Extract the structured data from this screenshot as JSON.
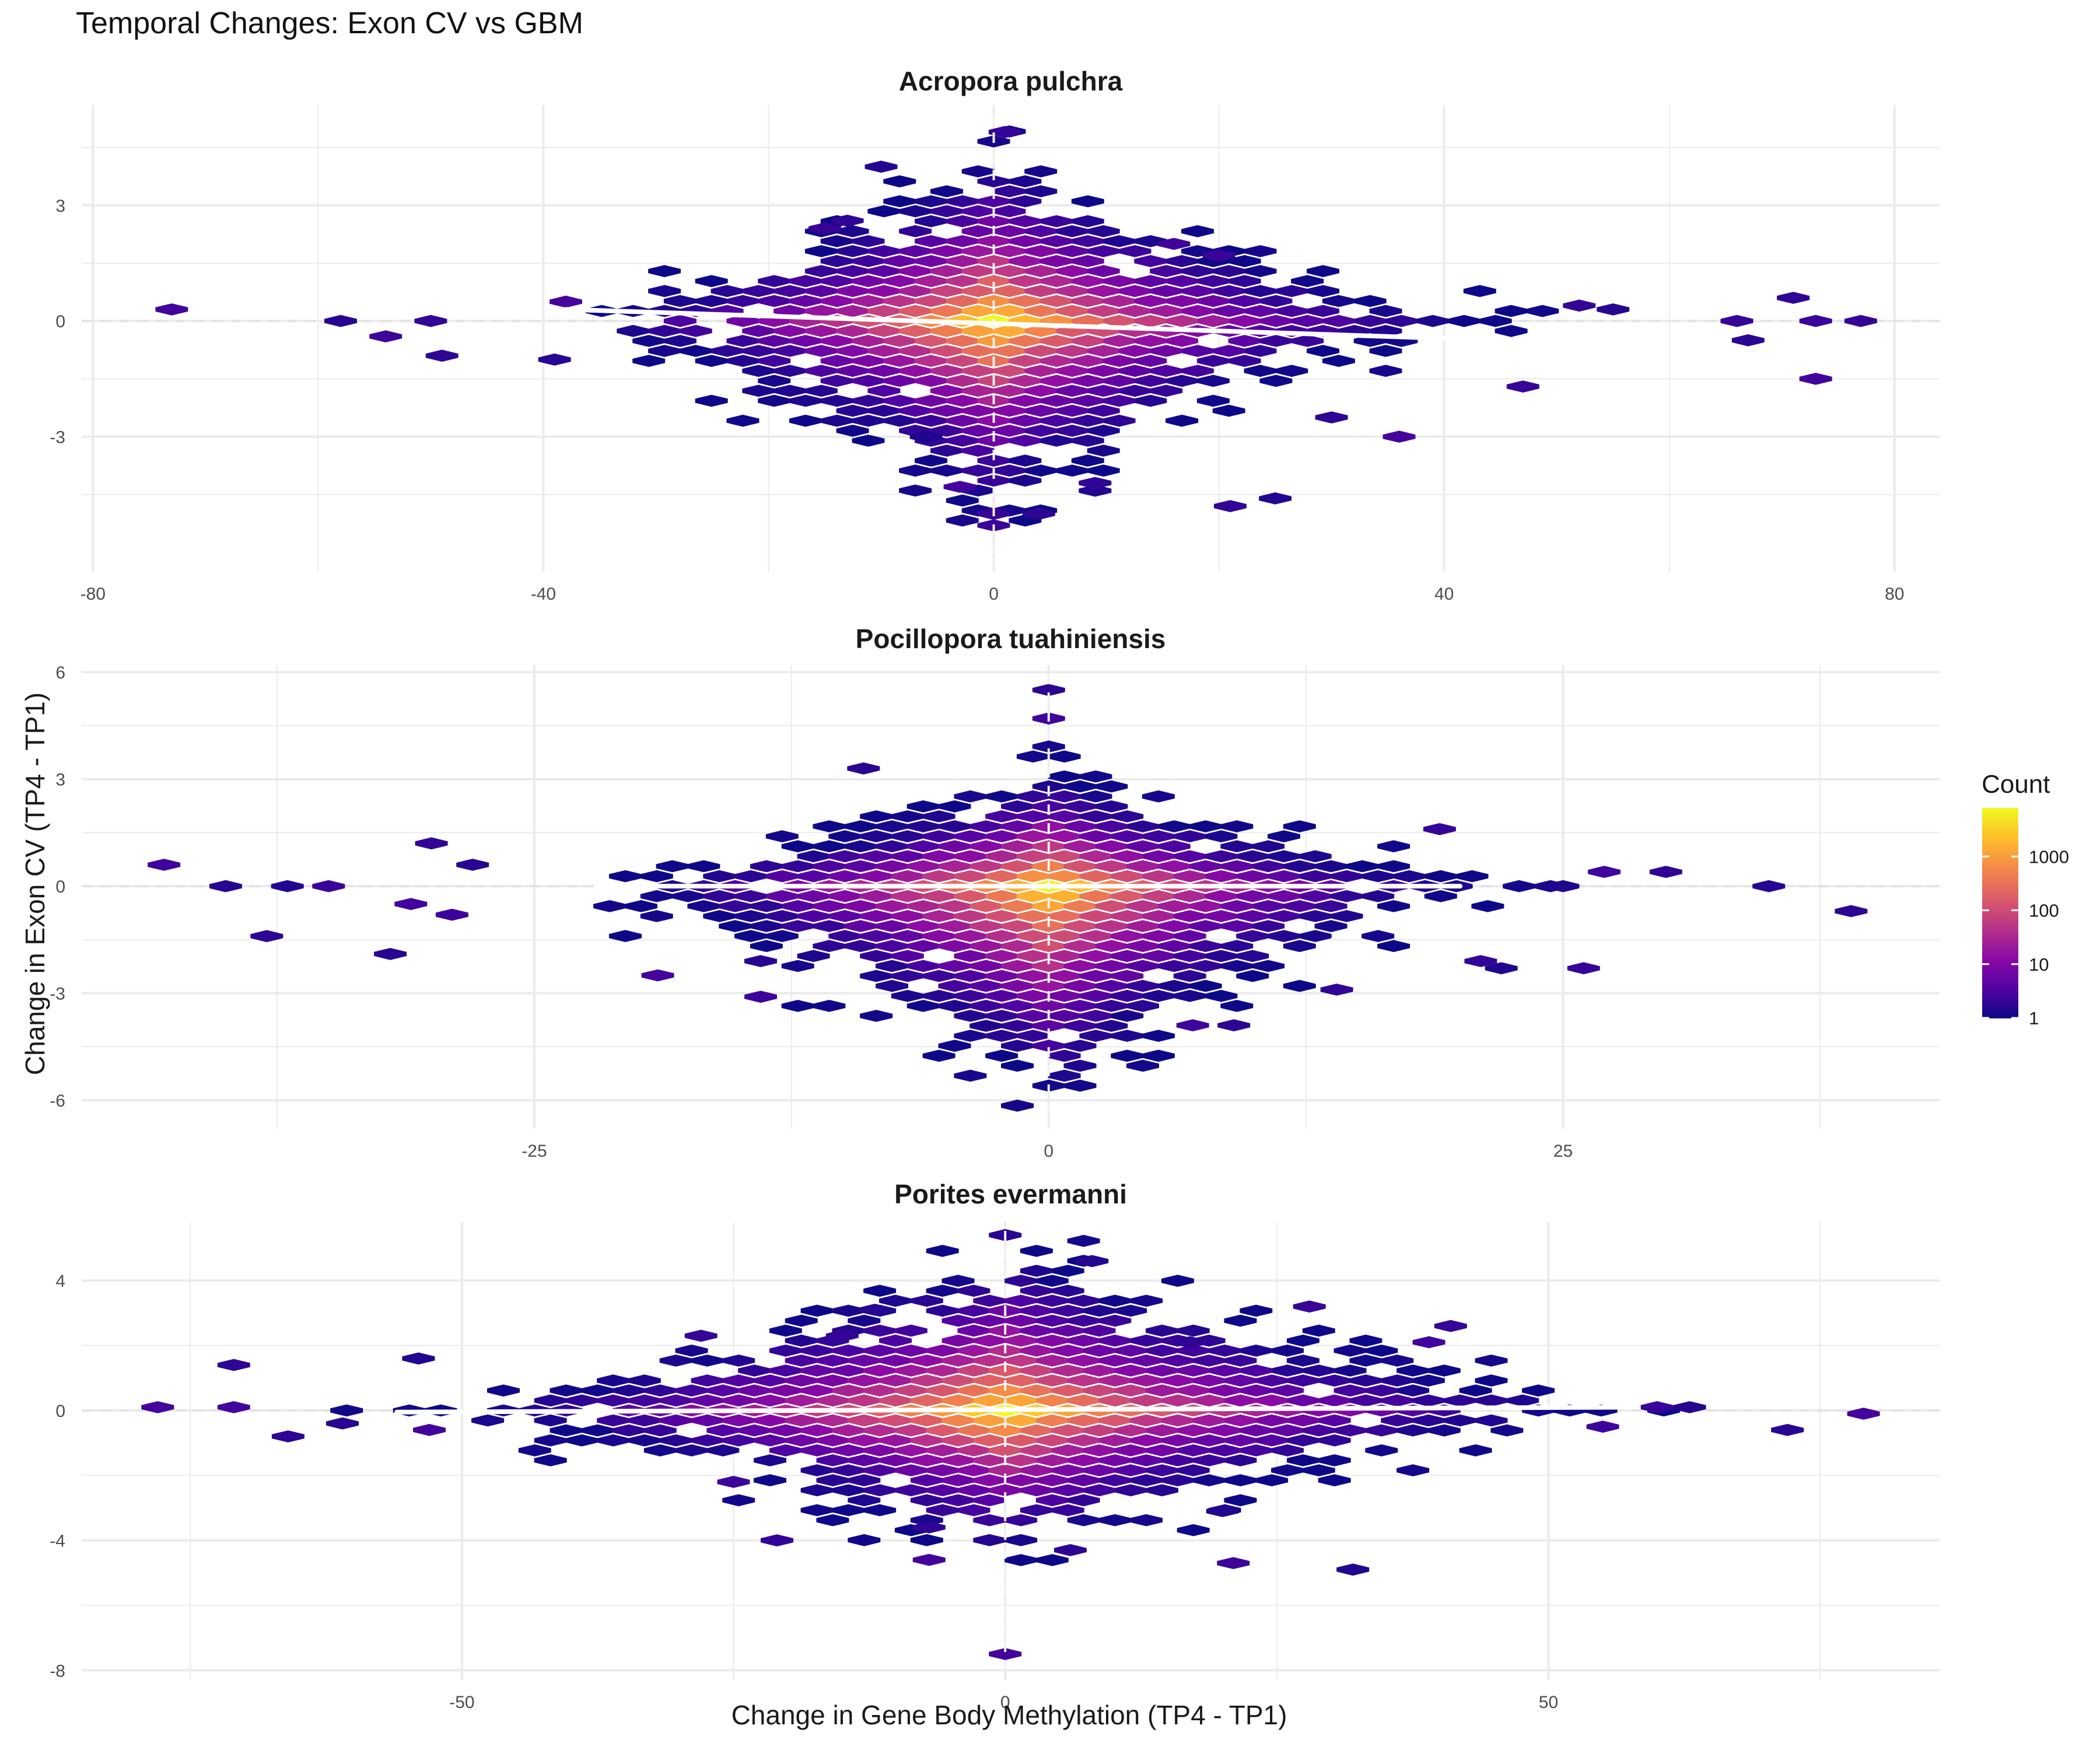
{
  "chart_data": {
    "type": "hexbin",
    "title": "Temporal Changes: Exon CV vs GBM",
    "xlabel": "Change in Gene Body Methylation (TP4 - TP1)",
    "ylabel": "Change in Exon CV (TP4 - TP1)",
    "legend": {
      "title": "Count",
      "scale": "log10",
      "range": [
        1,
        8000
      ],
      "breaks": [
        1,
        10,
        100,
        1000
      ],
      "break_labels": [
        "1",
        "10",
        "100",
        "1000"
      ],
      "colors": [
        "#0d0887",
        "#5302a3",
        "#8b0aa5",
        "#b83289",
        "#db5c68",
        "#f48849",
        "#febd2a",
        "#f0f921"
      ],
      "placement": "right"
    },
    "reference_lines": {
      "x": 0,
      "y": 0,
      "style": "dashed",
      "color": "#e6e6e6"
    },
    "trend_line_color": "#ffffff",
    "panels": [
      {
        "title": "Acropora pulchra",
        "xlim": [
          -81,
          84
        ],
        "ylim": [
          -6.5,
          5.6
        ],
        "xticks": [
          -80,
          -40,
          0,
          40,
          80
        ],
        "xtick_labels": [
          "-80",
          "-40",
          "0",
          "40",
          "80"
        ],
        "yticks": [
          -3,
          0,
          3
        ],
        "ytick_labels": [
          "-3",
          "0",
          "3"
        ],
        "trend": {
          "x": [
            -38,
            40
          ],
          "y": [
            0.3,
            -0.45
          ]
        },
        "spread": {
          "x_left": 40,
          "x_right": 44,
          "y_up": 4.5,
          "y_down": 5.2,
          "center_log10_count": 3.9
        },
        "outliers": [
          [
            -73,
            0.3
          ],
          [
            -58,
            0.0
          ],
          [
            -54,
            -0.4
          ],
          [
            -50,
            0.0
          ],
          [
            -49,
            -0.9
          ],
          [
            -39,
            -1.0
          ],
          [
            -38,
            0.5
          ],
          [
            -15,
            2.4
          ],
          [
            -13,
            2.6
          ],
          [
            -10,
            4.0
          ],
          [
            -6,
            -3.0
          ],
          [
            -3,
            -4.3
          ],
          [
            0,
            -5.0
          ],
          [
            0,
            -5.3
          ],
          [
            1,
            4.9
          ],
          [
            4,
            -5.0
          ],
          [
            9,
            -4.4
          ],
          [
            9,
            -4.2
          ],
          [
            16,
            2.0
          ],
          [
            20,
            1.7
          ],
          [
            21,
            -4.8
          ],
          [
            25,
            -4.6
          ],
          [
            30,
            -2.5
          ],
          [
            36,
            -3.0
          ],
          [
            47,
            -1.7
          ],
          [
            52,
            0.4
          ],
          [
            55,
            0.3
          ],
          [
            66,
            0.0
          ],
          [
            67,
            -0.5
          ],
          [
            71,
            0.6
          ],
          [
            73,
            0.0
          ],
          [
            73,
            -1.5
          ],
          [
            77,
            0.0
          ]
        ]
      },
      {
        "title": "Pocillopora tuahiniensis",
        "xlim": [
          -47,
          43.3
        ],
        "ylim": [
          -6.8,
          6.2
        ],
        "xticks": [
          -25,
          0,
          25
        ],
        "xtick_labels": [
          "-25",
          "0",
          "25"
        ],
        "yticks": [
          -6,
          -3,
          0,
          3,
          6
        ],
        "ytick_labels": [
          "-6",
          "-3",
          "0",
          "3",
          "6"
        ],
        "trend": {
          "x": [
            -22,
            20
          ],
          "y": [
            0.0,
            0.0
          ]
        },
        "spread": {
          "x_left": 23,
          "x_right": 22,
          "y_up": 3.4,
          "y_down": 6.2,
          "center_log10_count": 3.9
        },
        "outliers": [
          [
            -43,
            0.6
          ],
          [
            -40,
            0.0
          ],
          [
            -38,
            -1.4
          ],
          [
            -37,
            0.0
          ],
          [
            -35,
            0.0
          ],
          [
            -32,
            -1.9
          ],
          [
            -31,
            -0.5
          ],
          [
            -30,
            1.2
          ],
          [
            -29,
            -0.8
          ],
          [
            -28,
            0.6
          ],
          [
            -19,
            -2.5
          ],
          [
            -14,
            -2.1
          ],
          [
            -14,
            -3.1
          ],
          [
            -9,
            3.3
          ],
          [
            0,
            5.5
          ],
          [
            0,
            4.7
          ],
          [
            7,
            -3.9
          ],
          [
            9,
            -3.9
          ],
          [
            14,
            -2.9
          ],
          [
            19,
            1.6
          ],
          [
            21,
            -2.1
          ],
          [
            22,
            -2.3
          ],
          [
            26,
            -2.3
          ],
          [
            25,
            0.0
          ],
          [
            27,
            0.4
          ],
          [
            30,
            0.4
          ],
          [
            35,
            0.0
          ],
          [
            39,
            -0.7
          ]
        ]
      },
      {
        "title": "Porites evermanni",
        "xlim": [
          -85,
          86
        ],
        "ylim": [
          -8.3,
          5.8
        ],
        "xticks": [
          -50,
          0,
          50
        ],
        "xtick_labels": [
          "-50",
          "0",
          "50"
        ],
        "yticks": [
          -8,
          -4,
          0,
          4
        ],
        "ytick_labels": [
          "-8",
          "-4",
          "0",
          "4"
        ],
        "trend": {
          "x": [
            -56,
            58
          ],
          "y": [
            -0.05,
            0.1
          ]
        },
        "spread": {
          "x_left": 55,
          "x_right": 58,
          "y_up": 5.2,
          "y_down": 4.8,
          "center_log10_count": 3.9
        },
        "outliers": [
          [
            -78,
            0.1
          ],
          [
            -71,
            1.4
          ],
          [
            -71,
            0.1
          ],
          [
            -66,
            -0.8
          ],
          [
            -61,
            -0.4
          ],
          [
            -54,
            1.6
          ],
          [
            -53,
            -0.6
          ],
          [
            -28,
            2.3
          ],
          [
            -25,
            -2.2
          ],
          [
            -21,
            -4.0
          ],
          [
            -15,
            2.3
          ],
          [
            -12,
            3.1
          ],
          [
            -7,
            -3.6
          ],
          [
            -7,
            -4.6
          ],
          [
            0,
            5.4
          ],
          [
            0,
            -7.5
          ],
          [
            6,
            -4.3
          ],
          [
            8,
            4.6
          ],
          [
            17,
            2.1
          ],
          [
            20,
            -3.1
          ],
          [
            21,
            -4.7
          ],
          [
            28,
            3.2
          ],
          [
            32,
            -4.9
          ],
          [
            39,
            2.1
          ],
          [
            41,
            2.6
          ],
          [
            55,
            -0.5
          ],
          [
            60,
            0.1
          ],
          [
            63,
            0.1
          ],
          [
            72,
            -0.6
          ],
          [
            79,
            -0.1
          ]
        ]
      }
    ]
  }
}
